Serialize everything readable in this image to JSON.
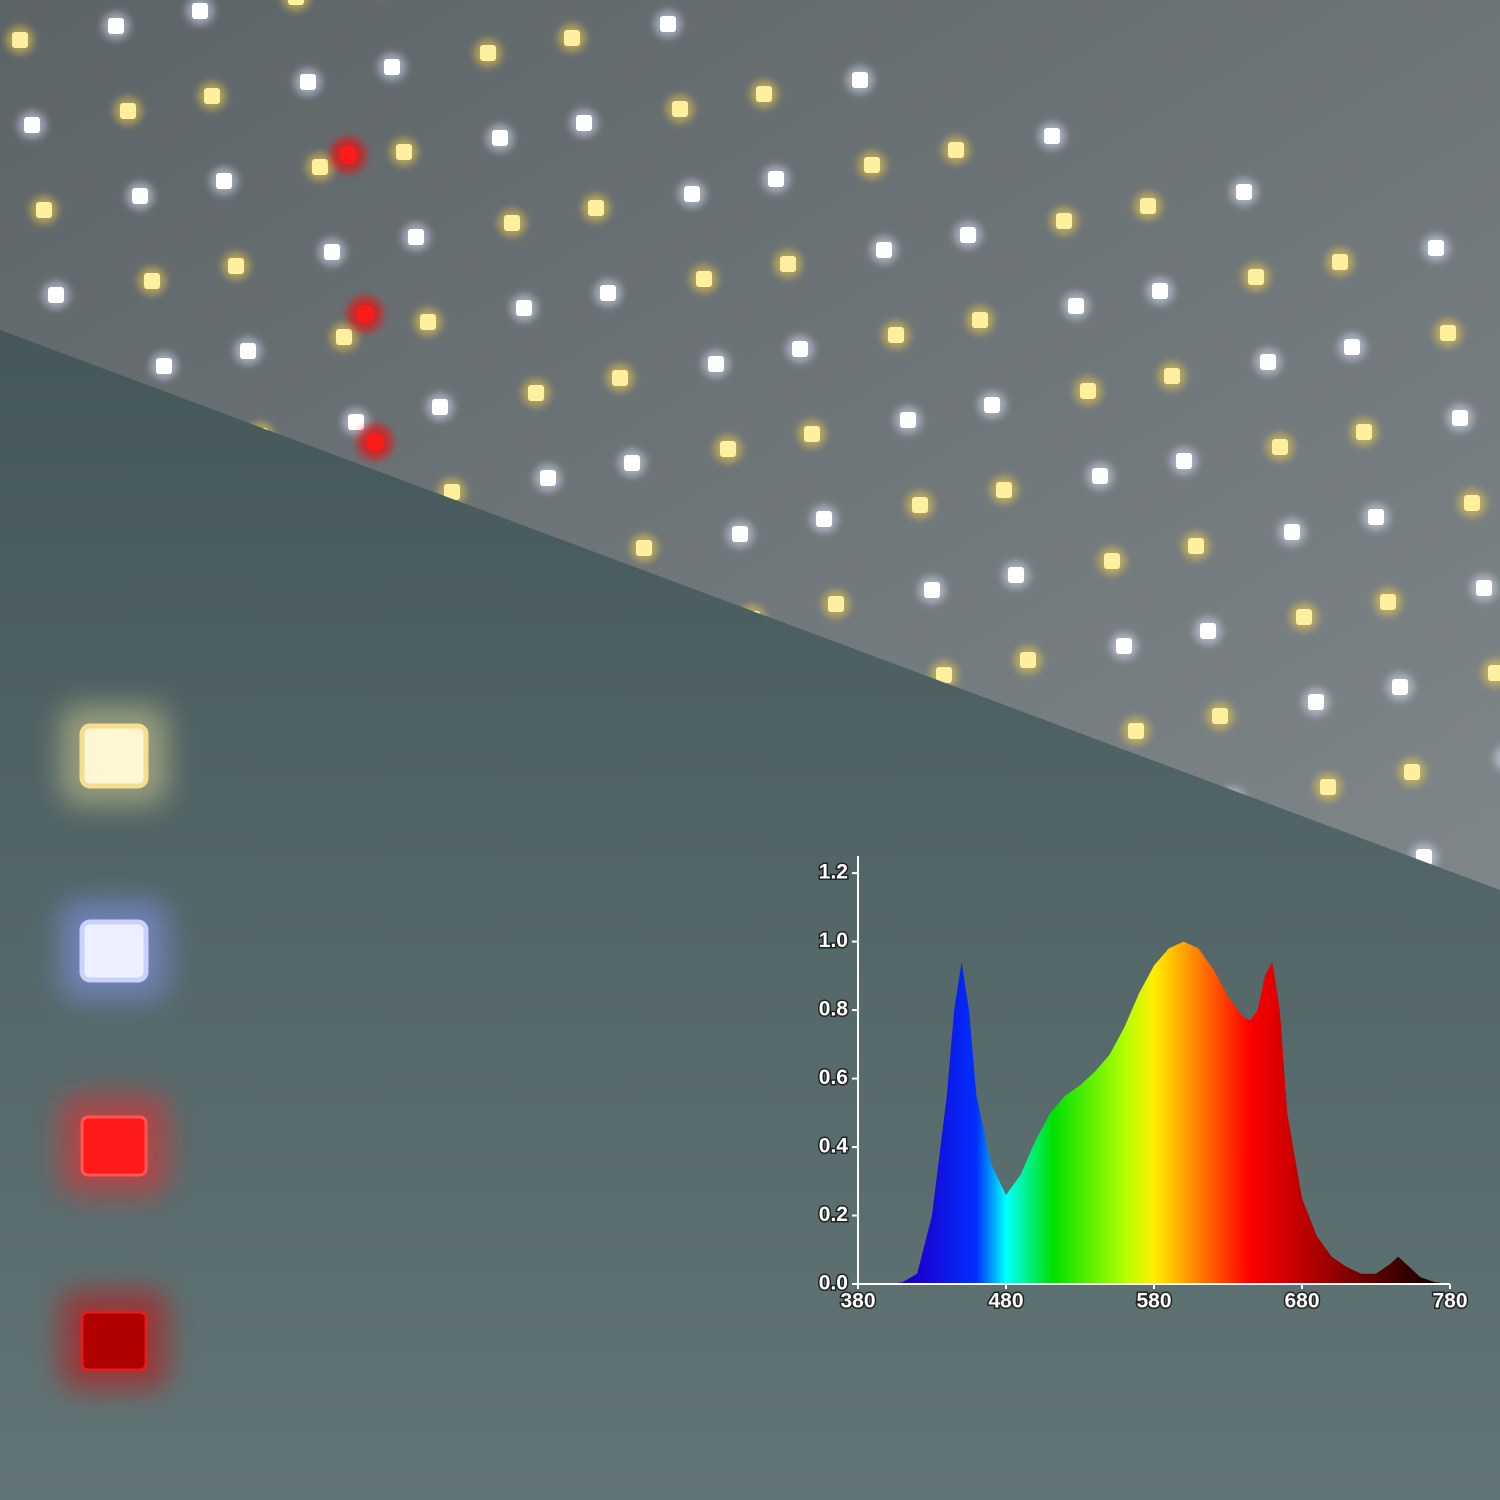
{
  "chart_data": {
    "type": "area",
    "x": [
      380,
      400,
      410,
      420,
      430,
      440,
      445,
      450,
      455,
      460,
      470,
      480,
      490,
      500,
      510,
      520,
      530,
      540,
      550,
      560,
      570,
      580,
      590,
      600,
      610,
      620,
      630,
      640,
      645,
      650,
      655,
      660,
      665,
      670,
      680,
      690,
      700,
      710,
      720,
      730,
      740,
      745,
      750,
      760,
      770,
      780
    ],
    "values": [
      0,
      0,
      0.005,
      0.03,
      0.2,
      0.55,
      0.8,
      0.94,
      0.8,
      0.55,
      0.35,
      0.26,
      0.32,
      0.42,
      0.5,
      0.55,
      0.58,
      0.62,
      0.67,
      0.75,
      0.85,
      0.93,
      0.98,
      1.0,
      0.98,
      0.92,
      0.84,
      0.78,
      0.77,
      0.8,
      0.9,
      0.94,
      0.8,
      0.5,
      0.25,
      0.14,
      0.08,
      0.05,
      0.03,
      0.03,
      0.06,
      0.08,
      0.06,
      0.02,
      0.005,
      0
    ],
    "xlim": [
      380,
      780
    ],
    "xticks": [
      380,
      480,
      580,
      680,
      780
    ],
    "ylim": [
      0,
      1.25
    ],
    "yticks": [
      {
        "value": 0,
        "label": "0.0"
      },
      0.2,
      0.4,
      0.6,
      0.8,
      {
        "value": 1,
        "label": "1.0"
      },
      1.2
    ]
  }
}
